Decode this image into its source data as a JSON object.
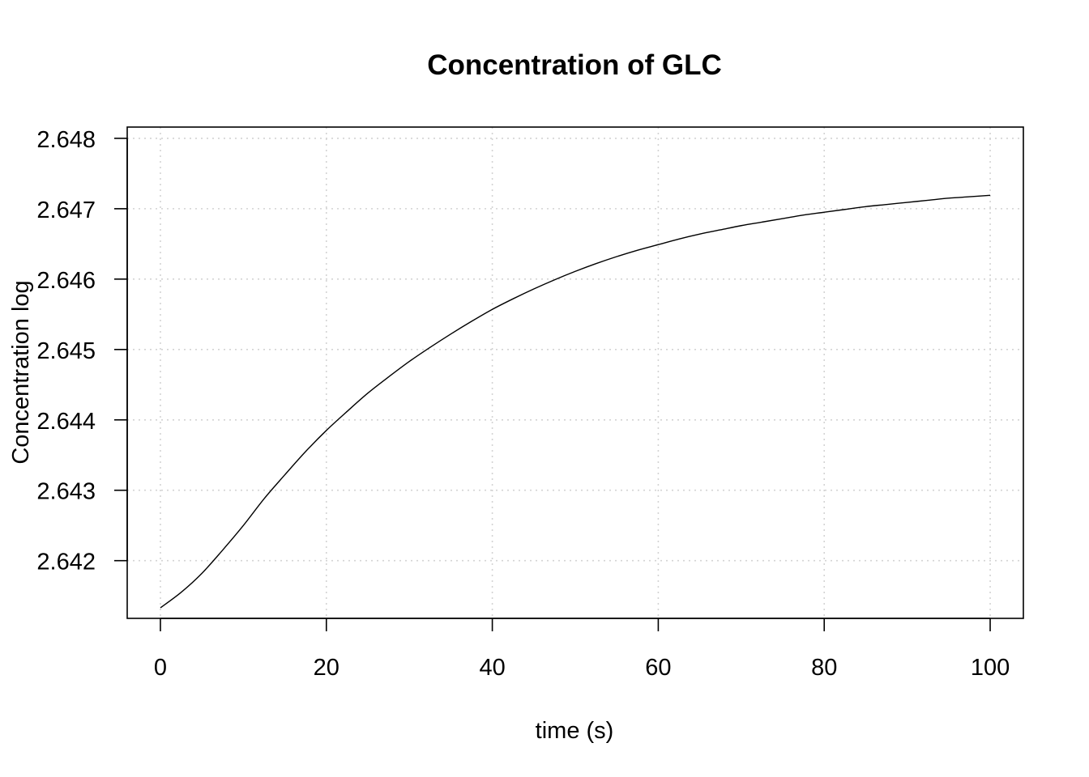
{
  "chart_data": {
    "type": "line",
    "title": "Concentration of GLC",
    "xlabel": "time (s)",
    "ylabel": "Concentration log",
    "xlim": [
      -4,
      104
    ],
    "ylim": [
      2.64118,
      2.64816
    ],
    "x_ticks": [
      0,
      20,
      40,
      60,
      80,
      100
    ],
    "x_tick_labels": [
      "0",
      "20",
      "40",
      "60",
      "80",
      "100"
    ],
    "y_ticks": [
      2.642,
      2.643,
      2.644,
      2.645,
      2.646,
      2.647,
      2.648
    ],
    "y_tick_labels": [
      "2.642",
      "2.643",
      "2.644",
      "2.645",
      "2.646",
      "2.647",
      "2.648"
    ],
    "grid": true,
    "series": [
      {
        "color": "#000000",
        "x": [
          0,
          2.5,
          5,
          7.5,
          10,
          12.5,
          15,
          17.5,
          20,
          22.5,
          25,
          27.5,
          30,
          32.5,
          35,
          37.5,
          40,
          42.5,
          45,
          47.5,
          50,
          52.5,
          55,
          57.5,
          60,
          62.5,
          65,
          67.5,
          70,
          72.5,
          75,
          77.5,
          80,
          82.5,
          85,
          87.5,
          90,
          92.5,
          95,
          97.5,
          100
        ],
        "y": [
          2.64133,
          2.64155,
          2.64182,
          2.64215,
          2.6425,
          2.64288,
          2.64322,
          2.64355,
          2.64385,
          2.64412,
          2.64438,
          2.64461,
          2.64483,
          2.64503,
          2.64522,
          2.6454,
          2.64557,
          2.64572,
          2.64586,
          2.64599,
          2.64611,
          2.64622,
          2.64632,
          2.64641,
          2.64649,
          2.64657,
          2.64664,
          2.6467,
          2.64676,
          2.64681,
          2.64686,
          2.64691,
          2.64695,
          2.64699,
          2.64703,
          2.64706,
          2.64709,
          2.64712,
          2.64715,
          2.64717,
          2.64719
        ]
      }
    ]
  }
}
